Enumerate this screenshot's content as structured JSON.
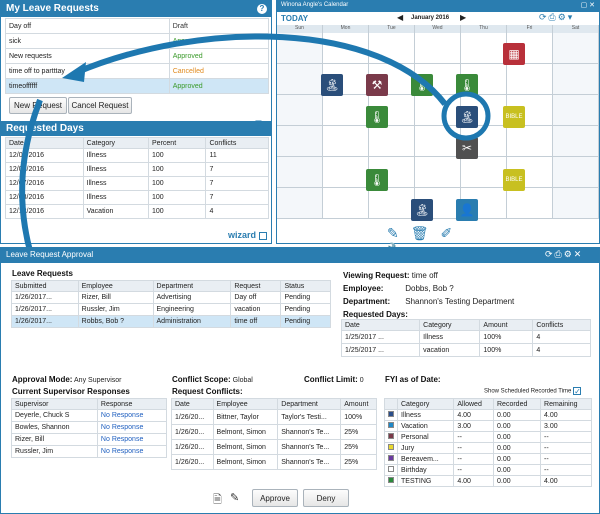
{
  "leave_requests": {
    "title": "My Leave Requests",
    "help": "?",
    "rows": [
      {
        "name": "Day off",
        "status": "Draft",
        "color": "#333333"
      },
      {
        "name": "sick",
        "status": "Approved",
        "color": "#3a9a2a"
      },
      {
        "name": "New requests",
        "status": "Approved",
        "color": "#3a9a2a"
      },
      {
        "name": "time off to partttay",
        "status": "Cancelled",
        "color": "#e08a1e"
      },
      {
        "name": "timeoffffff",
        "status": "Approved",
        "color": "#3a9a2a"
      }
    ],
    "new_request": "New Request",
    "cancel_request": "Cancel Request"
  },
  "requested_days": {
    "title": "Requested Days",
    "headers": [
      "Date",
      "Category",
      "Percent",
      "Conflicts"
    ],
    "rows": [
      [
        "12/05/2016",
        "Illness",
        "100",
        "11"
      ],
      [
        "12/06/2016",
        "Illness",
        "100",
        "7"
      ],
      [
        "12/07/2016",
        "Illness",
        "100",
        "7"
      ],
      [
        "12/08/2016",
        "Illness",
        "100",
        "7"
      ],
      [
        "12/12/2016",
        "Vacation",
        "100",
        "4"
      ]
    ],
    "wizard": "wizard"
  },
  "calendar": {
    "window_title": "Winona Angle's Calendar",
    "today": "TODAY",
    "month": "January 2016",
    "days": [
      "Sun",
      "Mon",
      "Tue",
      "Wed",
      "Thu",
      "Fri",
      "Sat"
    ]
  },
  "approval": {
    "title": "Leave Request Approval",
    "leave_requests_label": "Leave Requests",
    "req_headers": [
      "Submitted",
      "Employee",
      "Department",
      "Request",
      "Status"
    ],
    "req_rows": [
      [
        "1/26/2017...",
        "Rizer, Bill",
        "Advertising",
        "Day off",
        "Pending"
      ],
      [
        "1/26/2017...",
        "Russler, Jim",
        "Engineering",
        "vacation",
        "Pending"
      ],
      [
        "1/26/2017...",
        "Robbs, Bob ?",
        "Administration",
        "time off",
        "Pending"
      ]
    ],
    "viewing_label": "Viewing Request:",
    "viewing_value": "time off",
    "employee_label": "Employee:",
    "employee_value": "Dobbs, Bob ?",
    "department_label": "Department:",
    "department_value": "Shannon's Testing Department",
    "requested_days_label": "Requested Days:",
    "rd_headers": [
      "Date",
      "Category",
      "Amount",
      "Conflicts"
    ],
    "rd_rows": [
      [
        "1/25/2017 ...",
        "Illness",
        "100%",
        "4"
      ],
      [
        "1/25/2017 ...",
        "vacation",
        "100%",
        "4"
      ]
    ],
    "approval_mode_label": "Approval Mode:",
    "approval_mode_value": "Any Supervisor",
    "conflict_scope_label": "Conflict Scope:",
    "conflict_scope_value": "Global",
    "conflict_limit_label": "Conflict Limit:",
    "conflict_limit_value": "0",
    "fyi_label": "FYI as of Date:",
    "supervisor_label": "Current Supervisor Responses",
    "sup_headers": [
      "Supervisor",
      "Response"
    ],
    "sup_rows": [
      [
        "Deyerle, Chuck S",
        "No Response"
      ],
      [
        "Bowles, Shannon",
        "No Response"
      ],
      [
        "Rizer, Bill",
        "No Response"
      ],
      [
        "Russler, Jim",
        "No Response"
      ]
    ],
    "conflicts_label": "Request Conflicts:",
    "conf_headers": [
      "Date",
      "Employee",
      "Department",
      "Amount"
    ],
    "conf_rows": [
      [
        "1/26/20...",
        "Bittner, Taylor",
        "Taylor's Testi...",
        "100%"
      ],
      [
        "1/26/20...",
        "Belmont, Simon",
        "Shannon's Te...",
        "25%"
      ],
      [
        "1/26/20...",
        "Belmont, Simon",
        "Shannon's Te...",
        "25%"
      ],
      [
        "1/26/20...",
        "Belmont, Simon",
        "Shannon's Te...",
        "25%"
      ]
    ],
    "show_recorded": "Show Scheduled Recorded Time",
    "fyi_headers": [
      "Category",
      "Allowed",
      "Recorded",
      "Remaining"
    ],
    "fyi_rows": [
      {
        "c": "#2a4e8a",
        "name": "Illness",
        "a": "4.00",
        "r": "0.00",
        "m": "4.00"
      },
      {
        "c": "#1e88c8",
        "name": "Vacation",
        "a": "3.00",
        "r": "0.00",
        "m": "3.00"
      },
      {
        "c": "#7a3a4a",
        "name": "Personal",
        "a": "--",
        "r": "0.00",
        "m": "--"
      },
      {
        "c": "#e8d830",
        "name": "Jury",
        "a": "--",
        "r": "0.00",
        "m": "--"
      },
      {
        "c": "#6a3aa0",
        "name": "Bereavem...",
        "a": "--",
        "r": "0.00",
        "m": "--"
      },
      {
        "c": "#ffffff",
        "name": "Birthday",
        "a": "--",
        "r": "0.00",
        "m": "--"
      },
      {
        "c": "#2a8a3a",
        "name": "TESTING",
        "a": "4.00",
        "r": "0.00",
        "m": "4.00"
      }
    ],
    "approve": "Approve",
    "deny": "Deny"
  }
}
